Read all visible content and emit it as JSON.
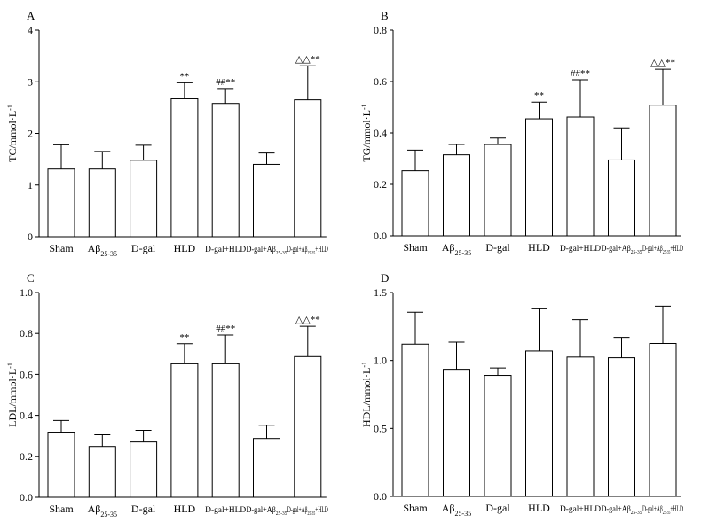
{
  "chart_data": [
    {
      "panel": "A",
      "type": "bar",
      "ylabel_main": "TC/mmol·L",
      "ylabel_sup": "-1",
      "ylim": [
        0,
        4
      ],
      "yticks": [
        "0",
        "1",
        "2",
        "3",
        "4"
      ],
      "categories": [
        {
          "main": "Sham",
          "sub": ""
        },
        {
          "main": "Aβ",
          "sub": "25-35"
        },
        {
          "main": "D-gal",
          "sub": ""
        },
        {
          "main": "HLD",
          "sub": ""
        },
        {
          "main": "D-gal+HLD",
          "sub": ""
        },
        {
          "main": "D-gal+Aβ",
          "sub": "25-35"
        },
        {
          "main": "D-gal+Aβ",
          "sub": "25-35",
          "suffix": "+HLD"
        }
      ],
      "values": [
        1.31,
        1.31,
        1.48,
        2.67,
        2.58,
        1.4,
        2.65
      ],
      "errors": [
        0.47,
        0.34,
        0.29,
        0.31,
        0.29,
        0.22,
        0.66
      ],
      "annotations": [
        "",
        "",
        "",
        "**",
        "##**",
        "",
        "△△**"
      ]
    },
    {
      "panel": "B",
      "type": "bar",
      "ylabel_main": "TG/mmol·L",
      "ylabel_sup": "-1",
      "ylim": [
        0,
        0.8
      ],
      "yticks": [
        "0.0",
        "0.2",
        "0.4",
        "0.6",
        "0.8"
      ],
      "categories": [
        {
          "main": "Sham",
          "sub": ""
        },
        {
          "main": "Aβ",
          "sub": "25-35"
        },
        {
          "main": "D-gal",
          "sub": ""
        },
        {
          "main": "HLD",
          "sub": ""
        },
        {
          "main": "D-gal+HLD",
          "sub": ""
        },
        {
          "main": "D-gal+Aβ",
          "sub": "25-35"
        },
        {
          "main": "D-gal+Aβ",
          "sub": "25-35",
          "suffix": "+HLD"
        }
      ],
      "values": [
        0.253,
        0.315,
        0.355,
        0.455,
        0.462,
        0.295,
        0.508
      ],
      "errors": [
        0.08,
        0.04,
        0.025,
        0.065,
        0.145,
        0.125,
        0.14
      ],
      "annotations": [
        "",
        "",
        "",
        "**",
        "##**",
        "",
        "△△**"
      ]
    },
    {
      "panel": "C",
      "type": "bar",
      "ylabel_main": "LDL/mmol·L",
      "ylabel_sup": "-1",
      "ylim": [
        0,
        1.0
      ],
      "yticks": [
        "0.0",
        "0.2",
        "0.4",
        "0.6",
        "0.8",
        "1.0"
      ],
      "categories": [
        {
          "main": "Sham",
          "sub": ""
        },
        {
          "main": "Aβ",
          "sub": "25-35"
        },
        {
          "main": "D-gal",
          "sub": ""
        },
        {
          "main": "HLD",
          "sub": ""
        },
        {
          "main": "D-gal+HLD",
          "sub": ""
        },
        {
          "main": "D-gal+Aβ",
          "sub": "25-35"
        },
        {
          "main": "D-gal+Aβ",
          "sub": "25-35",
          "suffix": "+HLD"
        }
      ],
      "values": [
        0.318,
        0.248,
        0.27,
        0.652,
        0.652,
        0.287,
        0.687
      ],
      "errors": [
        0.057,
        0.057,
        0.057,
        0.098,
        0.14,
        0.065,
        0.148
      ],
      "annotations": [
        "",
        "",
        "",
        "**",
        "##**",
        "",
        "△△**"
      ]
    },
    {
      "panel": "D",
      "type": "bar",
      "ylabel_main": "HDL/mmol·L",
      "ylabel_sup": "-1",
      "ylim": [
        0,
        1.5
      ],
      "yticks": [
        "0.0",
        "0.5",
        "1.0",
        "1.5"
      ],
      "categories": [
        {
          "main": "Sham",
          "sub": ""
        },
        {
          "main": "Aβ",
          "sub": "25-35"
        },
        {
          "main": "D-gal",
          "sub": ""
        },
        {
          "main": "HLD",
          "sub": ""
        },
        {
          "main": "D-gal+HLD",
          "sub": ""
        },
        {
          "main": "D-gal+Aβ",
          "sub": "25-35"
        },
        {
          "main": "D-gal+Aβ",
          "sub": "25-35",
          "suffix": "+HLD"
        }
      ],
      "values": [
        1.12,
        0.935,
        0.89,
        1.07,
        1.025,
        1.02,
        1.125
      ],
      "errors": [
        0.235,
        0.2,
        0.055,
        0.31,
        0.275,
        0.15,
        0.275
      ],
      "annotations": [
        "",
        "",
        "",
        "",
        "",
        "",
        ""
      ]
    }
  ]
}
